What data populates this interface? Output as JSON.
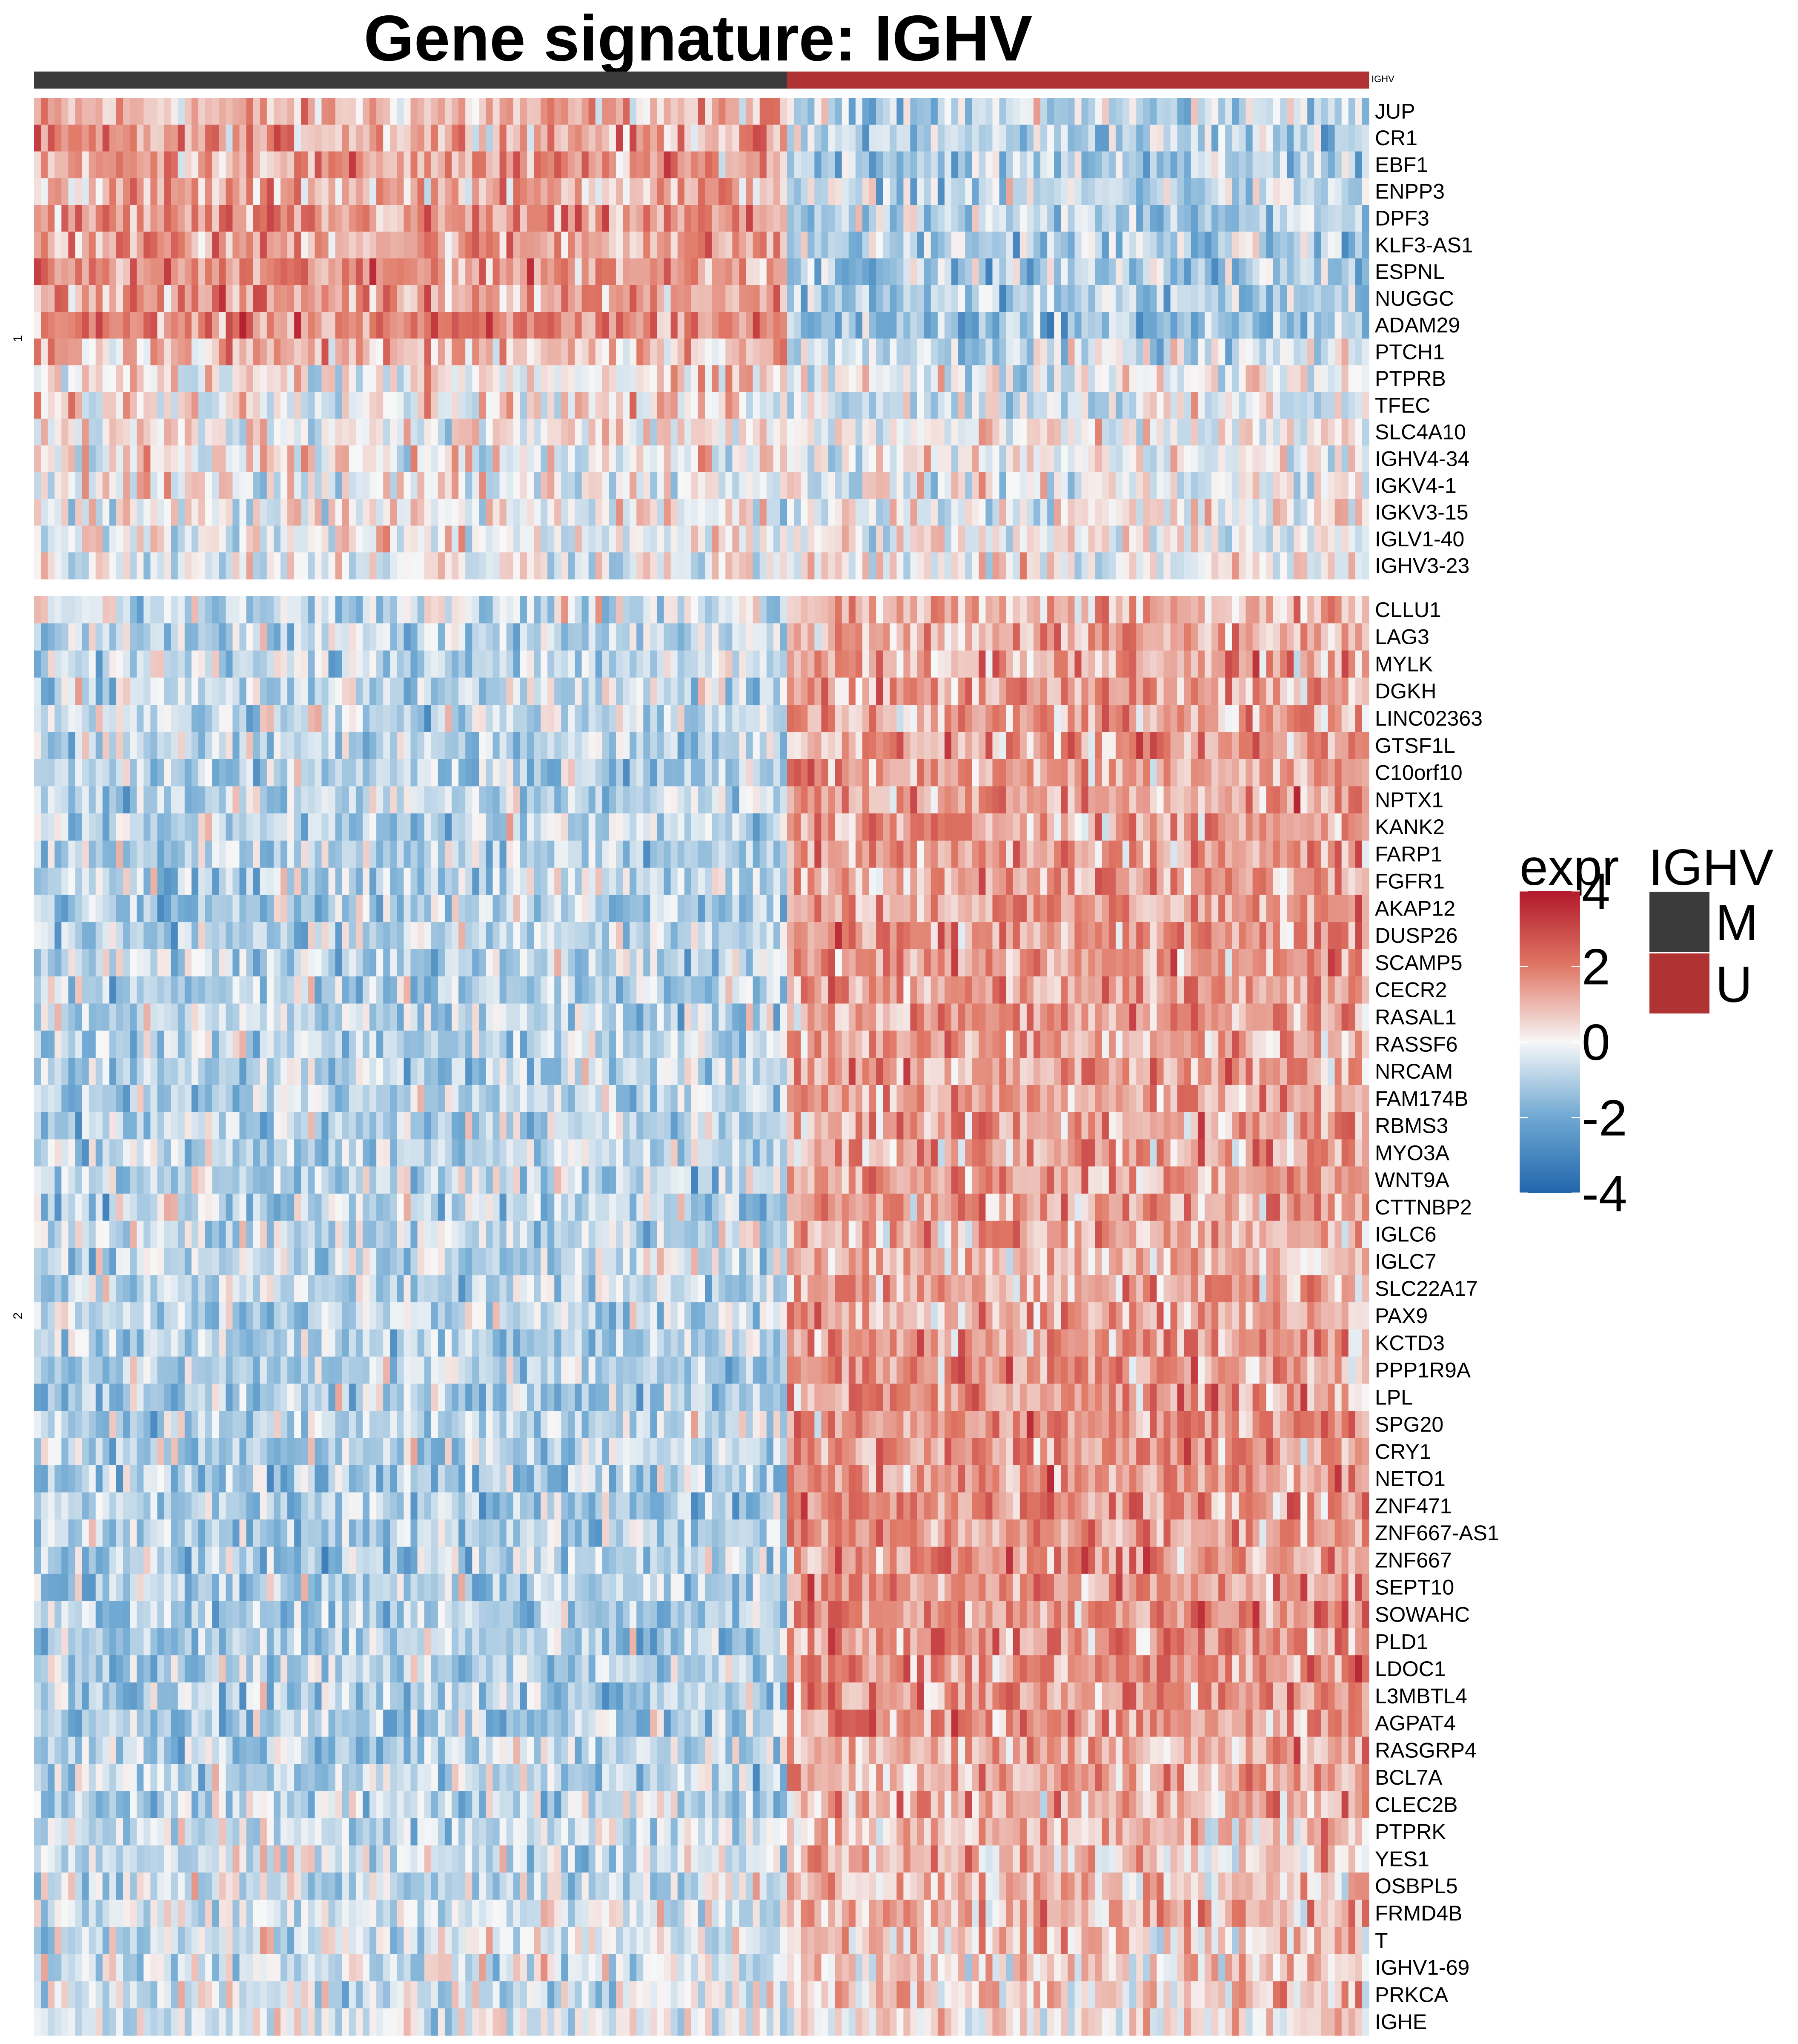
{
  "chart_data": {
    "type": "heatmap",
    "title": "Gene signature: IGHV",
    "column_annotation": {
      "name": "IGHV",
      "groups": [
        {
          "label": "M",
          "color": "#3b3b3b",
          "n_samples": 110
        },
        {
          "label": "U",
          "color": "#b03232",
          "n_samples": 85
        }
      ]
    },
    "row_splits": [
      {
        "label": "1",
        "genes": [
          "JUP",
          "CR1",
          "EBF1",
          "ENPP3",
          "DPF3",
          "KLF3-AS1",
          "ESPNL",
          "NUGGC",
          "ADAM29",
          "PTCH1",
          "PTPRB",
          "TFEC",
          "SLC4A10",
          "IGHV4-34",
          "IGKV4-1",
          "IGKV3-15",
          "IGLV1-40",
          "IGHV3-23"
        ],
        "mean_expr": {
          "M": [
            0.9,
            1.3,
            1.4,
            1.1,
            1.4,
            1.4,
            1.6,
            1.5,
            1.8,
            1.0,
            0.3,
            0.4,
            0.2,
            0.1,
            0.1,
            0.0,
            0.0,
            0.0
          ],
          "U": [
            -0.7,
            -0.9,
            -1.0,
            -0.8,
            -1.0,
            -1.0,
            -1.1,
            -1.1,
            -1.4,
            -0.7,
            -0.1,
            -0.3,
            -0.1,
            -0.1,
            -0.1,
            0.0,
            0.0,
            0.0
          ]
        }
      },
      {
        "label": "2",
        "genes": [
          "CLLU1",
          "LAG3",
          "MYLK",
          "DGKH",
          "LINC02363",
          "GTSF1L",
          "C10orf10",
          "NPTX1",
          "KANK2",
          "FARP1",
          "FGFR1",
          "AKAP12",
          "DUSP26",
          "SCAMP5",
          "CECR2",
          "RASAL1",
          "RASSF6",
          "NRCAM",
          "FAM174B",
          "RBMS3",
          "MYO3A",
          "WNT9A",
          "CTTNBP2",
          "IGLC6",
          "IGLC7",
          "SLC22A17",
          "PAX9",
          "KCTD3",
          "PPP1R9A",
          "LPL",
          "SPG20",
          "CRY1",
          "NETO1",
          "ZNF471",
          "ZNF667-AS1",
          "ZNF667",
          "SEPT10",
          "SOWAHC",
          "PLD1",
          "LDOC1",
          "L3MBTL4",
          "AGPAT4",
          "RASGRP4",
          "BCL7A",
          "CLEC2B",
          "PTPRK",
          "YES1",
          "OSBPL5",
          "FRMD4B",
          "T",
          "IGHV1-69",
          "PRKCA",
          "IGHE"
        ],
        "mean_expr": {
          "M": [
            -0.5,
            -0.7,
            -0.7,
            -0.7,
            -0.7,
            -0.8,
            -0.8,
            -0.8,
            -0.8,
            -0.8,
            -0.8,
            -0.8,
            -0.8,
            -0.8,
            -0.8,
            -0.8,
            -0.8,
            -0.8,
            -0.8,
            -0.8,
            -0.8,
            -0.8,
            -0.8,
            -0.6,
            -0.6,
            -0.8,
            -0.8,
            -0.9,
            -0.9,
            -0.9,
            -0.9,
            -0.9,
            -1.0,
            -1.0,
            -1.0,
            -1.0,
            -1.0,
            -1.0,
            -1.0,
            -1.0,
            -1.0,
            -1.0,
            -0.8,
            -0.8,
            -0.8,
            -0.5,
            -0.5,
            -0.5,
            -0.5,
            -0.4,
            -0.3,
            -0.4,
            -0.3
          ],
          "U": [
            1.0,
            1.2,
            1.3,
            1.3,
            1.3,
            1.3,
            1.3,
            1.4,
            1.4,
            1.4,
            1.3,
            1.4,
            1.4,
            1.4,
            1.4,
            1.4,
            1.3,
            1.3,
            1.3,
            1.3,
            1.3,
            1.3,
            1.3,
            1.0,
            1.0,
            1.3,
            1.3,
            1.5,
            1.5,
            1.5,
            1.5,
            1.5,
            1.5,
            1.6,
            1.6,
            1.6,
            1.6,
            1.6,
            1.6,
            1.6,
            1.5,
            1.5,
            1.2,
            1.2,
            1.2,
            0.9,
            0.9,
            0.9,
            0.9,
            0.7,
            0.5,
            0.6,
            0.5
          ]
        }
      }
    ],
    "color_scale": {
      "name": "expr",
      "stops": [
        {
          "value": -4,
          "color": "#2166ac"
        },
        {
          "value": -2,
          "color": "#6ea8d2"
        },
        {
          "value": 0,
          "color": "#f7f7f7"
        },
        {
          "value": 2,
          "color": "#e07866"
        },
        {
          "value": 4,
          "color": "#b2182b"
        }
      ],
      "ticks": [
        "4",
        "2",
        "0",
        "-2",
        "-4"
      ]
    },
    "legend_annotation": {
      "title": "IGHV",
      "items": [
        {
          "label": "M",
          "color": "#3b3b3b"
        },
        {
          "label": "U",
          "color": "#b03232"
        }
      ]
    },
    "legend_position": "right"
  }
}
